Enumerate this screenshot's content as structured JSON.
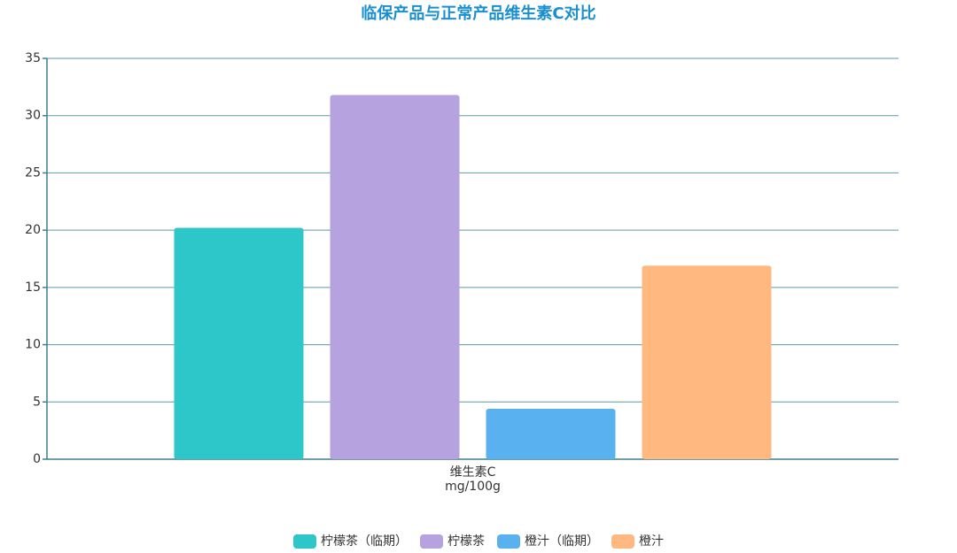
{
  "chart_data": {
    "type": "bar",
    "title": "临保产品与正常产品维生素C对比",
    "categories": [
      "维生素C"
    ],
    "x_label": "mg/100g",
    "series": [
      {
        "name": "柠檬茶（临期）",
        "color": "#2ec7c9",
        "values": [
          20.2
        ]
      },
      {
        "name": "柠檬茶",
        "color": "#b6a2de",
        "values": [
          31.8
        ]
      },
      {
        "name": "橙汁（临期）",
        "color": "#5ab1ef",
        "values": [
          4.4
        ]
      },
      {
        "name": "橙汁",
        "color": "#ffb980",
        "values": [
          16.9
        ]
      }
    ],
    "ylim": [
      0,
      35
    ],
    "yticks": [
      0,
      5,
      10,
      15,
      20,
      25,
      30,
      35
    ],
    "grid": true,
    "legend": "bottom"
  }
}
